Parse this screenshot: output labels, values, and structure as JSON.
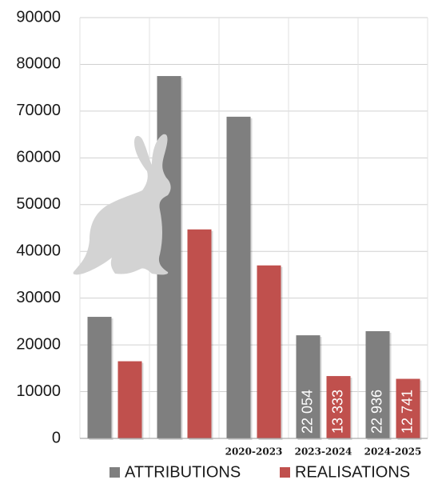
{
  "chart_data": {
    "type": "bar",
    "categories": [
      null,
      null,
      "2020-2023",
      "2023-2024",
      "2024-2025"
    ],
    "series": [
      {
        "name": "ATTRIBUTIONS",
        "color": "#7f7f7f",
        "values": [
          26000,
          77500,
          68800,
          22054,
          22936
        ],
        "value_labels": [
          null,
          null,
          null,
          "22 054",
          "22 936"
        ]
      },
      {
        "name": "REALISATIONS",
        "color": "#c0504d",
        "values": [
          16500,
          44700,
          37000,
          13333,
          12741
        ],
        "value_labels": [
          null,
          null,
          null,
          "13 333",
          "12 741"
        ]
      }
    ],
    "ylim": [
      0,
      90000
    ],
    "yticks": [
      0,
      10000,
      20000,
      30000,
      40000,
      50000,
      60000,
      70000,
      80000,
      90000
    ],
    "grid": true
  }
}
